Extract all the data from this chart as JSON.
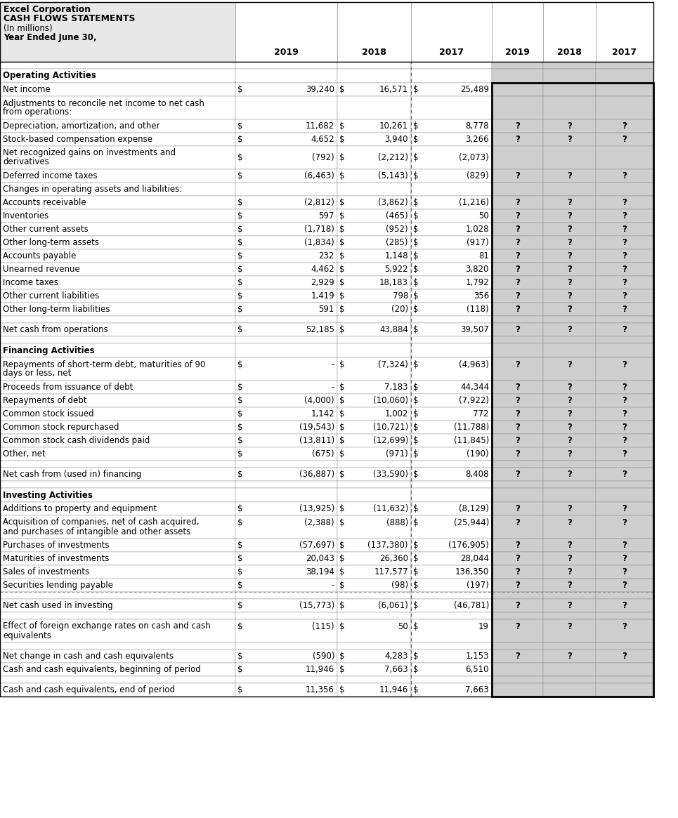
{
  "title_line1": "Excel Corporation",
  "title_line2": "CASH FLOWS STATEMENTS",
  "title_line3": "(In millions)",
  "title_line4": "Year Ended June 30,",
  "col_headers": [
    "2019",
    "2018",
    "2017",
    "2019",
    "2018",
    "2017"
  ],
  "rows": [
    {
      "label": "",
      "spacer": true,
      "bold": false,
      "section": false,
      "vals": [
        "",
        "",
        "",
        "",
        "",
        ""
      ],
      "q_row": 0
    },
    {
      "label": "Operating Activities",
      "spacer": false,
      "bold": true,
      "section": true,
      "vals": [
        "",
        "",
        "",
        "",
        "",
        ""
      ],
      "q_row": 0
    },
    {
      "label": "Net income",
      "spacer": false,
      "bold": false,
      "section": false,
      "vals": [
        "$ 39,240",
        "$ 16,571",
        "$ 25,489",
        "",
        "",
        ""
      ],
      "q_row": 0
    },
    {
      "label": "Adjustments to reconcile net income to net cash\nfrom operations:",
      "spacer": false,
      "bold": false,
      "section": false,
      "vals": [
        "",
        "",
        "",
        "",
        "",
        ""
      ],
      "q_row": 0
    },
    {
      "label": "Depreciation, amortization, and other",
      "spacer": false,
      "bold": false,
      "section": false,
      "vals": [
        "$ 11,682",
        "$ 10,261",
        "$ 8,778",
        "?",
        "?",
        "?"
      ],
      "q_row": 0
    },
    {
      "label": "Stock-based compensation expense",
      "spacer": false,
      "bold": false,
      "section": false,
      "vals": [
        "$ 4,652",
        "$ 3,940",
        "$ 3,266",
        "?",
        "?",
        "?"
      ],
      "q_row": 0
    },
    {
      "label": "Net recognized gains on investments and\nderivatives",
      "spacer": false,
      "bold": false,
      "section": false,
      "vals": [
        "$ (792)",
        "$ (2,212)",
        "$ (2,073)",
        "",
        "",
        ""
      ],
      "q_row": 0
    },
    {
      "label": "Deferred income taxes",
      "spacer": false,
      "bold": false,
      "section": false,
      "vals": [
        "$ (6,463)",
        "$ (5,143)",
        "$ (829)",
        "?",
        "?",
        "?"
      ],
      "q_row": 0
    },
    {
      "label": "Changes in operating assets and liabilities:",
      "spacer": false,
      "bold": false,
      "section": false,
      "vals": [
        "",
        "",
        "",
        "",
        "",
        ""
      ],
      "q_row": 0
    },
    {
      "label": "Accounts receivable",
      "spacer": false,
      "bold": false,
      "section": false,
      "vals": [
        "$ (2,812)",
        "$ (3,862)",
        "$ (1,216)",
        "?",
        "?",
        "?"
      ],
      "q_row": 0
    },
    {
      "label": "Inventories",
      "spacer": false,
      "bold": false,
      "section": false,
      "vals": [
        "$ 597",
        "$ (465)",
        "$ 50",
        "?",
        "?",
        "?"
      ],
      "q_row": 0
    },
    {
      "label": "Other current assets",
      "spacer": false,
      "bold": false,
      "section": false,
      "vals": [
        "$ (1,718)",
        "$ (952)",
        "$ 1,028",
        "?",
        "?",
        "?"
      ],
      "q_row": 0
    },
    {
      "label": "Other long-term assets",
      "spacer": false,
      "bold": false,
      "section": false,
      "vals": [
        "$ (1,834)",
        "$ (285)",
        "$ (917)",
        "?",
        "?",
        "?"
      ],
      "q_row": 0
    },
    {
      "label": "Accounts payable",
      "spacer": false,
      "bold": false,
      "section": false,
      "vals": [
        "$ 232",
        "$ 1,148",
        "$ 81",
        "?",
        "?",
        "?"
      ],
      "q_row": 0
    },
    {
      "label": "Unearned revenue",
      "spacer": false,
      "bold": false,
      "section": false,
      "vals": [
        "$ 4,462",
        "$ 5,922",
        "$ 3,820",
        "?",
        "?",
        "?"
      ],
      "q_row": 0
    },
    {
      "label": "Income taxes",
      "spacer": false,
      "bold": false,
      "section": false,
      "vals": [
        "$ 2,929",
        "$ 18,183",
        "$ 1,792",
        "?",
        "?",
        "?"
      ],
      "q_row": 0
    },
    {
      "label": "Other current liabilities",
      "spacer": false,
      "bold": false,
      "section": false,
      "vals": [
        "$ 1,419",
        "$ 798",
        "$ 356",
        "?",
        "?",
        "?"
      ],
      "q_row": 0
    },
    {
      "label": "Other long-term liabilities",
      "spacer": false,
      "bold": false,
      "section": false,
      "vals": [
        "$ 591",
        "$ (20)",
        "$ (118)",
        "?",
        "?",
        "?"
      ],
      "q_row": 0
    },
    {
      "label": "",
      "spacer": true,
      "bold": false,
      "section": false,
      "vals": [
        "",
        "",
        "",
        "",
        "",
        ""
      ],
      "q_row": 0
    },
    {
      "label": "Net cash from operations",
      "spacer": false,
      "bold": false,
      "section": false,
      "vals": [
        "$ 52,185",
        "$ 43,884",
        "$ 39,507",
        "?",
        "?",
        "?"
      ],
      "q_row": 0
    },
    {
      "label": "",
      "spacer": true,
      "bold": false,
      "section": false,
      "vals": [
        "",
        "",
        "",
        "",
        "",
        ""
      ],
      "q_row": 0
    },
    {
      "label": "Financing Activities",
      "spacer": false,
      "bold": true,
      "section": true,
      "vals": [
        "",
        "",
        "",
        "",
        "",
        ""
      ],
      "q_row": 0
    },
    {
      "label": "Repayments of short-term debt, maturities of 90\ndays or less, net",
      "spacer": false,
      "bold": false,
      "section": false,
      "vals": [
        "$ -",
        "$ (7,324)",
        "$ (4,963)",
        "?",
        "?",
        "?"
      ],
      "q_row": 2
    },
    {
      "label": "Proceeds from issuance of debt",
      "spacer": false,
      "bold": false,
      "section": false,
      "vals": [
        "$ -",
        "$ 7,183",
        "$ 44,344",
        "?",
        "?",
        "?"
      ],
      "q_row": 0
    },
    {
      "label": "Repayments of debt",
      "spacer": false,
      "bold": false,
      "section": false,
      "vals": [
        "$ (4,000)",
        "$ (10,060)",
        "$ (7,922)",
        "?",
        "?",
        "?"
      ],
      "q_row": 0
    },
    {
      "label": "Common stock issued",
      "spacer": false,
      "bold": false,
      "section": false,
      "vals": [
        "$ 1,142",
        "$ 1,002",
        "$ 772",
        "?",
        "?",
        "?"
      ],
      "q_row": 0
    },
    {
      "label": "Common stock repurchased",
      "spacer": false,
      "bold": false,
      "section": false,
      "vals": [
        "$ (19,543)",
        "$ (10,721)",
        "$ (11,788)",
        "?",
        "?",
        "?"
      ],
      "q_row": 0
    },
    {
      "label": "Common stock cash dividends paid",
      "spacer": false,
      "bold": false,
      "section": false,
      "vals": [
        "$ (13,811)",
        "$ (12,699)",
        "$ (11,845)",
        "?",
        "?",
        "?"
      ],
      "q_row": 0
    },
    {
      "label": "Other, net",
      "spacer": false,
      "bold": false,
      "section": false,
      "vals": [
        "$ (675)",
        "$ (971)",
        "$ (190)",
        "?",
        "?",
        "?"
      ],
      "q_row": 0
    },
    {
      "label": "",
      "spacer": true,
      "bold": false,
      "section": false,
      "vals": [
        "",
        "",
        "",
        "",
        "",
        ""
      ],
      "q_row": 0
    },
    {
      "label": "Net cash from (used in) financing",
      "spacer": false,
      "bold": false,
      "section": false,
      "vals": [
        "$ (36,887)",
        "$ (33,590)",
        "$ 8,408",
        "?",
        "?",
        "?"
      ],
      "q_row": 0
    },
    {
      "label": "",
      "spacer": true,
      "bold": false,
      "section": false,
      "vals": [
        "",
        "",
        "",
        "",
        "",
        ""
      ],
      "q_row": 0
    },
    {
      "label": "Investing Activities",
      "spacer": false,
      "bold": true,
      "section": true,
      "vals": [
        "",
        "",
        "",
        "",
        "",
        ""
      ],
      "q_row": 0
    },
    {
      "label": "Additions to property and equipment",
      "spacer": false,
      "bold": false,
      "section": false,
      "vals": [
        "$ (13,925)",
        "$ (11,632)",
        "$ (8,129)",
        "?",
        "?",
        "?"
      ],
      "q_row": 0
    },
    {
      "label": "Acquisition of companies, net of cash acquired,\nand purchases of intangible and other assets",
      "spacer": false,
      "bold": false,
      "section": false,
      "vals": [
        "$ (2,388)",
        "$ (888)",
        "$ (25,944)",
        "?",
        "?",
        "?"
      ],
      "q_row": 2
    },
    {
      "label": "Purchases of investments",
      "spacer": false,
      "bold": false,
      "section": false,
      "vals": [
        "$ (57,697)",
        "$ (137,380)",
        "$ (176,905)",
        "?",
        "?",
        "?"
      ],
      "q_row": 0
    },
    {
      "label": "Maturities of investments",
      "spacer": false,
      "bold": false,
      "section": false,
      "vals": [
        "$ 20,043",
        "$ 26,360",
        "$ 28,044",
        "?",
        "?",
        "?"
      ],
      "q_row": 0
    },
    {
      "label": "Sales of investments",
      "spacer": false,
      "bold": false,
      "section": false,
      "vals": [
        "$ 38,194",
        "$ 117,577",
        "$ 136,350",
        "?",
        "?",
        "?"
      ],
      "q_row": 0
    },
    {
      "label": "Securities lending payable",
      "spacer": false,
      "bold": false,
      "section": false,
      "vals": [
        "$ -",
        "$ (98)",
        "$ (197)",
        "?",
        "?",
        "?"
      ],
      "q_row": 0
    },
    {
      "label": "",
      "spacer": true,
      "bold": false,
      "section": false,
      "vals": [
        "",
        "",
        "",
        "",
        "",
        ""
      ],
      "q_row": 0
    },
    {
      "label": "Net cash used in investing",
      "spacer": false,
      "bold": false,
      "section": false,
      "vals": [
        "$ (15,773)",
        "$ (6,061)",
        "$ (46,781)",
        "?",
        "?",
        "?"
      ],
      "q_row": 0
    },
    {
      "label": "",
      "spacer": true,
      "bold": false,
      "section": false,
      "vals": [
        "",
        "",
        "",
        "",
        "",
        ""
      ],
      "q_row": 0
    },
    {
      "label": "Effect of foreign exchange rates on cash and cash\nequivalents",
      "spacer": false,
      "bold": false,
      "section": false,
      "vals": [
        "$ (115)",
        "$ 50",
        "$ 19",
        "?",
        "?",
        "?"
      ],
      "q_row": 2
    },
    {
      "label": "",
      "spacer": true,
      "bold": false,
      "section": false,
      "vals": [
        "",
        "",
        "",
        "",
        "",
        ""
      ],
      "q_row": 0
    },
    {
      "label": "Net change in cash and cash equivalents",
      "spacer": false,
      "bold": false,
      "section": false,
      "vals": [
        "$ (590)",
        "$ 4,283",
        "$ 1,153",
        "?",
        "?",
        "?"
      ],
      "q_row": 0
    },
    {
      "label": "Cash and cash equivalents, beginning of period",
      "spacer": false,
      "bold": false,
      "section": false,
      "vals": [
        "$ 11,946",
        "$ 7,663",
        "$ 6,510",
        "",
        "",
        ""
      ],
      "q_row": 0
    },
    {
      "label": "",
      "spacer": true,
      "bold": false,
      "section": false,
      "vals": [
        "",
        "",
        "",
        "",
        "",
        ""
      ],
      "q_row": 0
    },
    {
      "label": "Cash and cash equivalents, end of period",
      "spacer": false,
      "bold": false,
      "section": false,
      "vals": [
        "$ 11,356",
        "$ 11,946",
        "$ 7,663",
        "",
        "",
        ""
      ],
      "q_row": 0
    }
  ],
  "bg_header": "#e8e8e8",
  "bg_white": "#ffffff",
  "bg_gray": "#cecece",
  "border_color": "#888888",
  "fig_w": 9.65,
  "fig_h": 11.65,
  "dpi": 100
}
